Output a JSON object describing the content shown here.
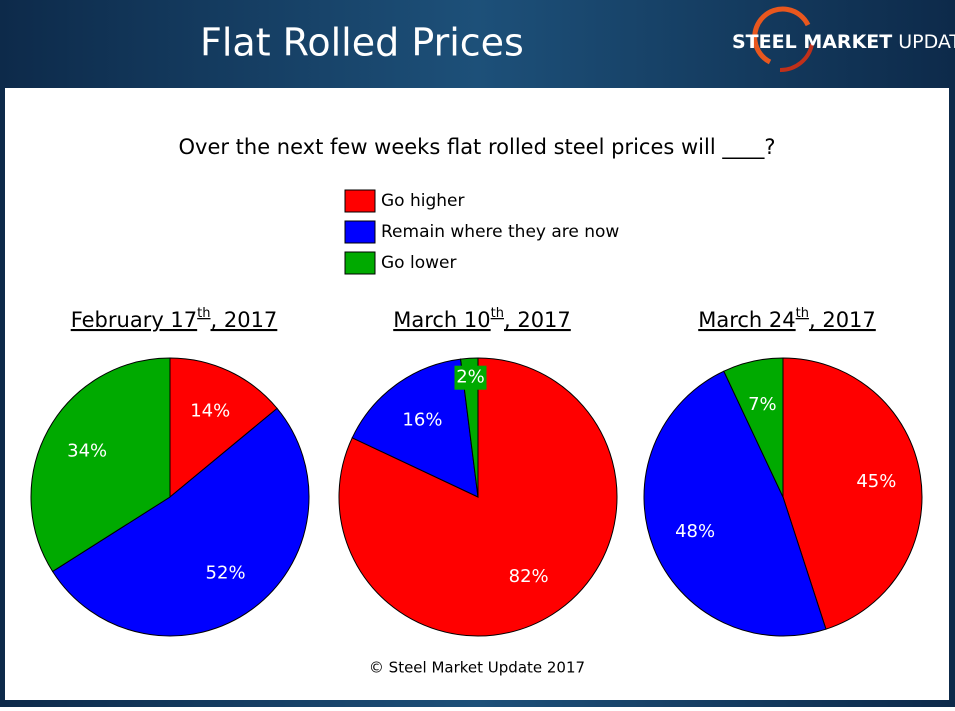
{
  "header": {
    "title": "Flat Rolled Prices",
    "logo_bold": "STEEL MARKET",
    "logo_light": "UPDATE"
  },
  "question": "Over the next few weeks flat rolled steel prices will ____?",
  "footer": "© Steel Market Update 2017",
  "chart_data": [
    {
      "type": "pie",
      "title": [
        "February 17",
        "th",
        ", 2017"
      ],
      "categories": [
        "Go higher",
        "Remain where they are now",
        "Go lower"
      ],
      "values": [
        14,
        52,
        34
      ],
      "value_labels": [
        "14%",
        "52%",
        "34%"
      ],
      "colors": [
        "#ff0000",
        "#0000ff",
        "#00aa00"
      ]
    },
    {
      "type": "pie",
      "title": [
        "March 10",
        "th",
        ", 2017"
      ],
      "categories": [
        "Go higher",
        "Remain where they are now",
        "Go lower"
      ],
      "values": [
        82,
        16,
        2
      ],
      "value_labels": [
        "82%",
        "16%",
        "2%"
      ],
      "colors": [
        "#ff0000",
        "#0000ff",
        "#00aa00"
      ]
    },
    {
      "type": "pie",
      "title": [
        "March 24",
        "th",
        ", 2017"
      ],
      "categories": [
        "Go higher",
        "Remain where they are now",
        "Go lower"
      ],
      "values": [
        45,
        48,
        7
      ],
      "value_labels": [
        "45%",
        "48%",
        "7%"
      ],
      "colors": [
        "#ff0000",
        "#0000ff",
        "#00aa00"
      ]
    }
  ]
}
